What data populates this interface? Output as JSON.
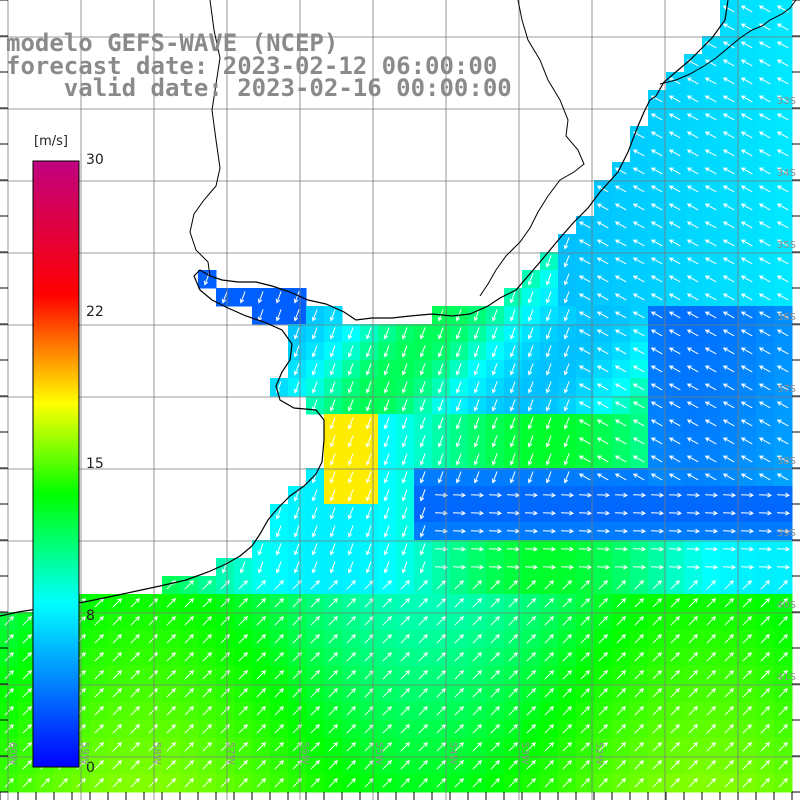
{
  "title": {
    "line1": "modelo GEFS-WAVE (NCEP)",
    "line2": "forecast date: 2023-02-12 06:00:00",
    "line3": "    valid date: 2023-02-16 00:00:00"
  },
  "colorbar": {
    "unit": "[m/s]",
    "ticks": [
      "30",
      "22",
      "15",
      "8",
      "0"
    ],
    "stops": [
      "#0000ff",
      "#00ffff",
      "#00ff00",
      "#ffff00",
      "#ff0000",
      "#c00080"
    ]
  },
  "lat_labels": [
    "33S",
    "34S",
    "35S",
    "36S",
    "37S",
    "38S",
    "39S",
    "40S",
    "41S"
  ],
  "lon_labels": [
    "60W",
    "59W",
    "58W",
    "57W",
    "56W",
    "55W",
    "54W",
    "53W",
    "52W"
  ],
  "colors": {
    "land": "#ffffff",
    "coast": "#000000",
    "grid": "#7a7a7a",
    "vector": "#ffffff"
  }
}
